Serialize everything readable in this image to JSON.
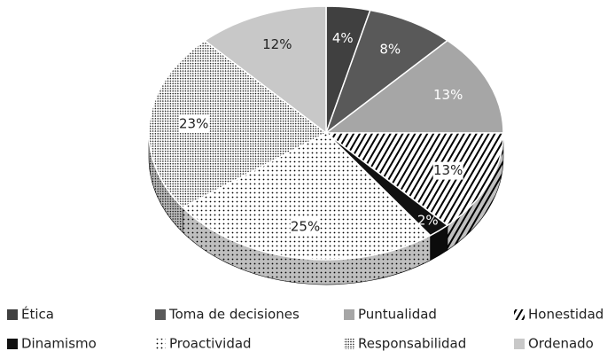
{
  "chart_data": {
    "type": "pie",
    "categories": [
      "Ética",
      "Toma de decisiones",
      "Puntualidad",
      "Honestidad",
      "Dinamismo",
      "Proactividad",
      "Responsabilidad",
      "Ordenado"
    ],
    "values": [
      4,
      8,
      13,
      13,
      2,
      25,
      23,
      12
    ],
    "value_labels": [
      "4%",
      "8%",
      "13%",
      "13%",
      "2%",
      "25%",
      "23%",
      "12%"
    ],
    "colors": [
      "#404040",
      "#595959",
      "#a6a6a6",
      "#000000",
      "#111111",
      "#000000",
      "#000000",
      "#c8c8c8"
    ],
    "patterns": [
      "solid",
      "solid",
      "solid",
      "stripes",
      "solid",
      "dots",
      "crossdots",
      "solid"
    ],
    "legend": "bottom"
  }
}
